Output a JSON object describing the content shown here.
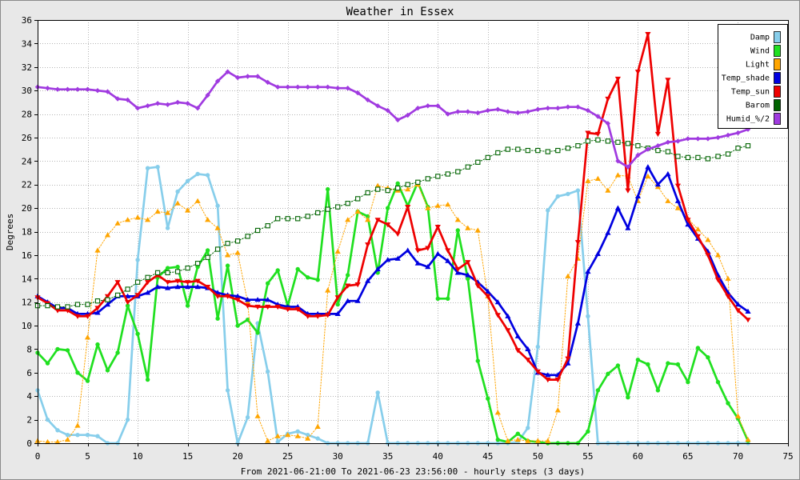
{
  "colors": {
    "background": "#e8e8e8",
    "plot_area": "#ffffff",
    "grid": "#b4b4b4",
    "frame": "#000000"
  },
  "chart_data": {
    "type": "line",
    "title": "Weather in Essex",
    "xlabel": "From 2021-06-21:00 To 2021-06-23 23:56:00 - hourly steps (3 days)",
    "ylabel": "Degrees",
    "xlim": [
      0,
      75
    ],
    "ylim": [
      0,
      36
    ],
    "xticks": [
      0,
      5,
      10,
      15,
      20,
      25,
      30,
      35,
      40,
      45,
      50,
      55,
      60,
      65,
      70,
      75
    ],
    "yticks": [
      0,
      2,
      4,
      6,
      8,
      10,
      12,
      14,
      16,
      18,
      20,
      22,
      24,
      26,
      28,
      30,
      32,
      34,
      36
    ],
    "grid": true,
    "legend_position": "top-right",
    "x": [
      0,
      1,
      2,
      3,
      4,
      5,
      6,
      7,
      8,
      9,
      10,
      11,
      12,
      13,
      14,
      15,
      16,
      17,
      18,
      19,
      20,
      21,
      22,
      23,
      24,
      25,
      26,
      27,
      28,
      29,
      30,
      31,
      32,
      33,
      34,
      35,
      36,
      37,
      38,
      39,
      40,
      41,
      42,
      43,
      44,
      45,
      46,
      47,
      48,
      49,
      50,
      51,
      52,
      53,
      54,
      55,
      56,
      57,
      58,
      59,
      60,
      61,
      62,
      63,
      64,
      65,
      66,
      67,
      68,
      69,
      70,
      71
    ],
    "series": [
      {
        "name": "Damp",
        "color": "#87ceeb",
        "marker": "circle",
        "line_style": "solid",
        "values": [
          4.5,
          2.0,
          1.1,
          0.7,
          0.7,
          0.7,
          0.6,
          0.0,
          0.0,
          2.0,
          15.6,
          23.4,
          23.5,
          18.3,
          21.4,
          22.3,
          22.9,
          22.8,
          20.2,
          4.5,
          0.0,
          2.2,
          10.2,
          6.1,
          0.1,
          0.8,
          1.0,
          0.7,
          0.4,
          0.0,
          0.0,
          0.0,
          0.0,
          0.0,
          4.3,
          0.0,
          0.0,
          0.0,
          0.0,
          0.0,
          0.0,
          0.0,
          0.0,
          0.0,
          0.0,
          0.0,
          0.0,
          0.0,
          0.1,
          1.3,
          8.2,
          19.8,
          21.0,
          21.2,
          21.5,
          10.8,
          0.0,
          0.0,
          0.0,
          0.0,
          0.0,
          0.0,
          0.0,
          0.0,
          0.0,
          0.0,
          0.0,
          0.0,
          0.0,
          0.0,
          0.0,
          0.0
        ]
      },
      {
        "name": "Wind",
        "color": "#20e020",
        "marker": "circle",
        "line_style": "solid",
        "values": [
          7.7,
          6.8,
          8.0,
          7.9,
          6.0,
          5.3,
          8.4,
          6.2,
          7.7,
          11.7,
          9.3,
          5.4,
          14.1,
          14.9,
          15.0,
          11.7,
          15.0,
          16.4,
          10.6,
          15.1,
          10.0,
          10.5,
          9.4,
          13.6,
          14.7,
          11.7,
          14.8,
          14.1,
          13.9,
          21.6,
          11.8,
          14.3,
          19.7,
          19.3,
          14.5,
          20.0,
          22.1,
          20.2,
          22.2,
          20.1,
          12.3,
          12.3,
          18.1,
          14.0,
          7.0,
          3.8,
          0.3,
          0.1,
          0.8,
          0.2,
          0.1,
          0.0,
          0.0,
          0.0,
          0.0,
          1.0,
          4.5,
          5.9,
          6.6,
          3.9,
          7.1,
          6.7,
          4.5,
          6.8,
          6.7,
          5.2,
          8.1,
          7.3,
          5.2,
          3.4,
          2.1,
          0.2
        ]
      },
      {
        "name": "Light",
        "color": "#ffa500",
        "marker": "triangle-up",
        "line_style": "dotted",
        "values": [
          0.2,
          0.1,
          0.1,
          0.3,
          1.5,
          9.0,
          16.4,
          17.7,
          18.7,
          19.0,
          19.2,
          19.0,
          19.7,
          19.6,
          20.4,
          19.8,
          20.6,
          19.0,
          18.3,
          16.0,
          16.2,
          12.0,
          2.3,
          0.2,
          0.6,
          0.7,
          0.6,
          0.4,
          1.4,
          13.0,
          16.3,
          19.0,
          19.7,
          19.0,
          21.9,
          21.7,
          21.5,
          21.6,
          22.0,
          20.0,
          20.2,
          20.3,
          19.0,
          18.3,
          18.1,
          12.5,
          2.6,
          0.2,
          0.3,
          0.2,
          0.2,
          0.2,
          2.8,
          14.2,
          15.7,
          22.3,
          22.5,
          21.5,
          22.8,
          22.7,
          20.6,
          22.7,
          21.8,
          20.6,
          20.0,
          19.1,
          18.2,
          17.3,
          16.0,
          14.0,
          2.3,
          0.3
        ]
      },
      {
        "name": "Temp_shade",
        "color": "#0000e0",
        "marker": "triangle-up",
        "line_style": "solid",
        "values": [
          12.5,
          12.0,
          11.5,
          11.5,
          11.0,
          11.0,
          11.1,
          11.8,
          12.5,
          12.5,
          12.5,
          12.8,
          13.3,
          13.2,
          13.3,
          13.3,
          13.3,
          13.2,
          12.8,
          12.6,
          12.5,
          12.2,
          12.2,
          12.2,
          11.8,
          11.6,
          11.6,
          11.0,
          11.0,
          11.0,
          11.0,
          12.1,
          12.1,
          13.8,
          14.8,
          15.6,
          15.7,
          16.4,
          15.3,
          15.0,
          16.1,
          15.5,
          14.5,
          14.3,
          13.7,
          12.9,
          12.0,
          10.8,
          9.1,
          8.0,
          6.0,
          5.8,
          5.8,
          6.8,
          10.2,
          14.6,
          16.1,
          17.9,
          20.0,
          18.3,
          21.0,
          23.5,
          22.0,
          22.9,
          20.6,
          18.6,
          17.4,
          16.3,
          14.3,
          12.8,
          11.8,
          11.2
        ]
      },
      {
        "name": "Temp_sun",
        "color": "#ee0000",
        "marker": "triangle-down",
        "line_style": "solid",
        "values": [
          12.4,
          11.9,
          11.3,
          11.3,
          10.8,
          10.8,
          11.5,
          12.5,
          13.7,
          12.0,
          12.6,
          13.7,
          14.3,
          13.7,
          13.8,
          13.7,
          13.8,
          13.3,
          12.5,
          12.5,
          12.2,
          11.7,
          11.6,
          11.6,
          11.6,
          11.4,
          11.4,
          10.8,
          10.8,
          10.9,
          12.4,
          13.4,
          13.5,
          16.9,
          19.0,
          18.6,
          17.8,
          20.1,
          16.4,
          16.6,
          18.4,
          16.4,
          14.8,
          15.4,
          13.4,
          12.5,
          10.9,
          9.6,
          7.9,
          7.1,
          6.1,
          5.4,
          5.4,
          7.2,
          17.1,
          26.4,
          26.3,
          29.3,
          31.0,
          21.5,
          31.6,
          34.8,
          26.3,
          30.9,
          21.9,
          19.0,
          17.6,
          16.0,
          13.9,
          12.5,
          11.3,
          10.5
        ]
      },
      {
        "name": "Barom",
        "color": "#006400",
        "marker": "square-open",
        "line_style": "dotted",
        "values": [
          11.7,
          11.7,
          11.6,
          11.6,
          11.8,
          11.8,
          12.1,
          12.2,
          12.6,
          13.1,
          13.7,
          14.1,
          14.5,
          14.5,
          14.6,
          14.9,
          15.3,
          15.8,
          16.5,
          17.0,
          17.2,
          17.6,
          18.1,
          18.5,
          19.1,
          19.1,
          19.1,
          19.3,
          19.6,
          19.9,
          20.1,
          20.4,
          20.8,
          21.3,
          21.6,
          21.5,
          21.7,
          22.0,
          22.2,
          22.5,
          22.7,
          22.9,
          23.1,
          23.5,
          23.9,
          24.3,
          24.7,
          25.0,
          25.0,
          24.9,
          24.9,
          24.8,
          24.9,
          25.1,
          25.3,
          25.7,
          25.8,
          25.7,
          25.6,
          25.5,
          25.3,
          25.1,
          24.9,
          24.8,
          24.4,
          24.3,
          24.3,
          24.2,
          24.4,
          24.6,
          25.1,
          25.3
        ]
      },
      {
        "name": "Humid_%/2",
        "color": "#a03ae0",
        "marker": "diamond",
        "line_style": "solid",
        "values": [
          30.3,
          30.2,
          30.1,
          30.1,
          30.1,
          30.1,
          30.0,
          29.9,
          29.3,
          29.2,
          28.5,
          28.7,
          28.9,
          28.8,
          29.0,
          28.9,
          28.5,
          29.6,
          30.8,
          31.6,
          31.1,
          31.2,
          31.2,
          30.7,
          30.3,
          30.3,
          30.3,
          30.3,
          30.3,
          30.3,
          30.2,
          30.2,
          29.8,
          29.2,
          28.7,
          28.3,
          27.5,
          27.9,
          28.5,
          28.7,
          28.7,
          28.0,
          28.2,
          28.2,
          28.1,
          28.3,
          28.4,
          28.2,
          28.1,
          28.2,
          28.4,
          28.5,
          28.5,
          28.6,
          28.6,
          28.3,
          27.8,
          27.2,
          24.0,
          23.5,
          24.5,
          25.0,
          25.3,
          25.6,
          25.7,
          25.9,
          25.9,
          25.9,
          26.0,
          26.2,
          26.4,
          26.7
        ]
      }
    ]
  }
}
